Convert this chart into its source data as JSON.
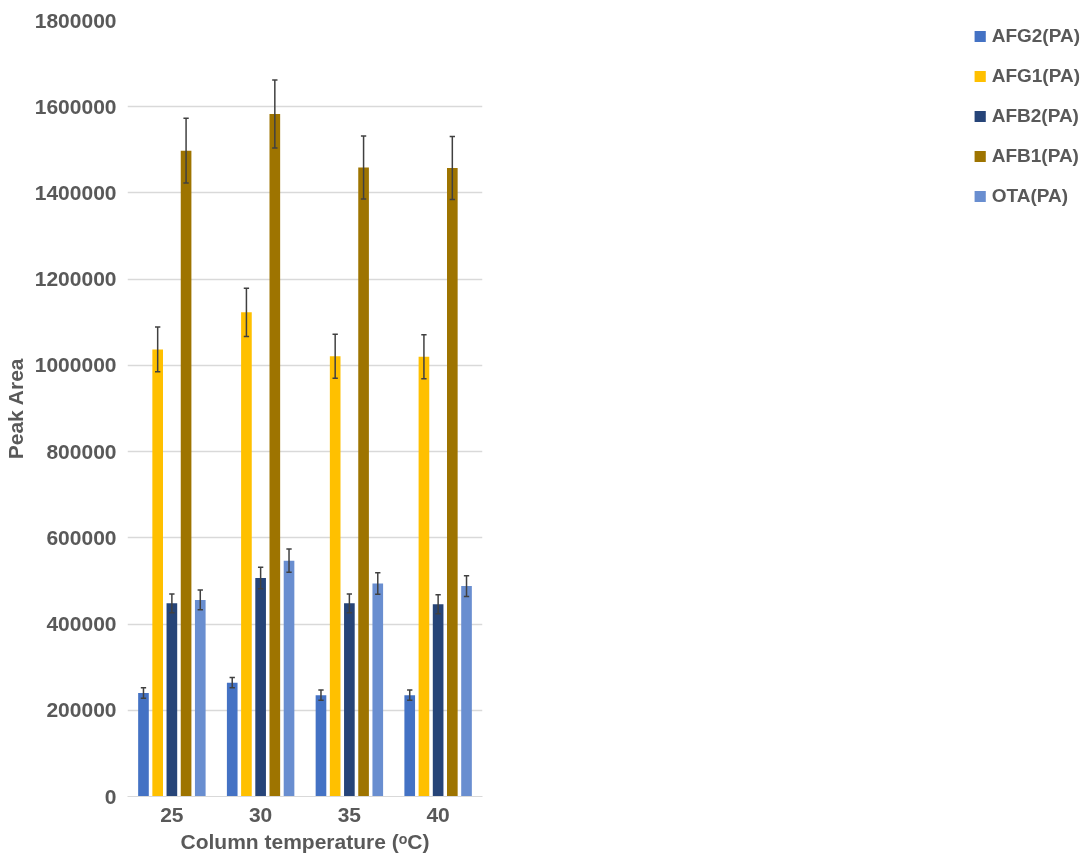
{
  "chart_data": {
    "type": "bar",
    "xlabel": "Column temperature (ᵒC)",
    "ylabel": "Peak Area",
    "categories": [
      "25",
      "30",
      "35",
      "40"
    ],
    "series": [
      {
        "name": "AFG2(PA)",
        "color": "#4472c4",
        "values": [
          240000,
          264000,
          235000,
          235000
        ],
        "errors": [
          12000,
          12000,
          12000,
          12000
        ]
      },
      {
        "name": "AFG1(PA)",
        "color": "#ffc000",
        "values": [
          1037000,
          1123000,
          1021000,
          1020000
        ],
        "errors": [
          52000,
          56000,
          51000,
          51000
        ]
      },
      {
        "name": "AFB2(PA)",
        "color": "#264478",
        "values": [
          448000,
          507000,
          448000,
          446000
        ],
        "errors": [
          22000,
          25000,
          22000,
          22000
        ]
      },
      {
        "name": "AFB1(PA)",
        "color": "#9e7400",
        "values": [
          1498000,
          1583000,
          1459000,
          1458000
        ],
        "errors": [
          75000,
          79000,
          73000,
          73000
        ]
      },
      {
        "name": "OTA(PA)",
        "color": "#698ed0",
        "values": [
          456000,
          547000,
          494000,
          488000
        ],
        "errors": [
          23000,
          27000,
          25000,
          24000
        ]
      }
    ],
    "ylim": [
      0,
      1800000
    ],
    "yticks": [
      0,
      200000,
      400000,
      600000,
      800000,
      1000000,
      1200000,
      1400000,
      1600000,
      1800000
    ],
    "grid": "y",
    "legend": "right"
  }
}
